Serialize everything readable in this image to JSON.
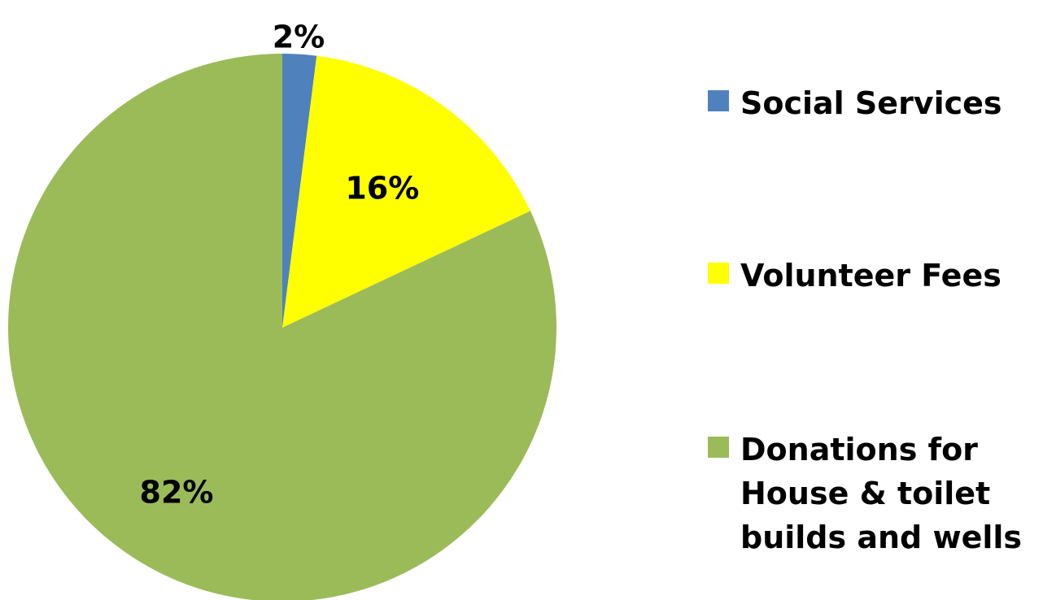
{
  "chart_data": {
    "type": "pie",
    "categories": [
      "Social Services",
      "Volunteer Fees",
      "Donations for House & toilet builds and wells"
    ],
    "values": [
      2,
      16,
      82
    ],
    "value_labels": [
      "2%",
      "16%",
      "82%"
    ],
    "colors": [
      "#4f81bd",
      "#ffff00",
      "#9bbb59"
    ],
    "legend": {
      "position": "right",
      "entries": [
        "Social Services",
        "Volunteer Fees",
        "Donations for\nHouse & toilet\nbuilds and wells"
      ]
    },
    "start_angle": "12 o'clock",
    "direction": "clockwise"
  }
}
